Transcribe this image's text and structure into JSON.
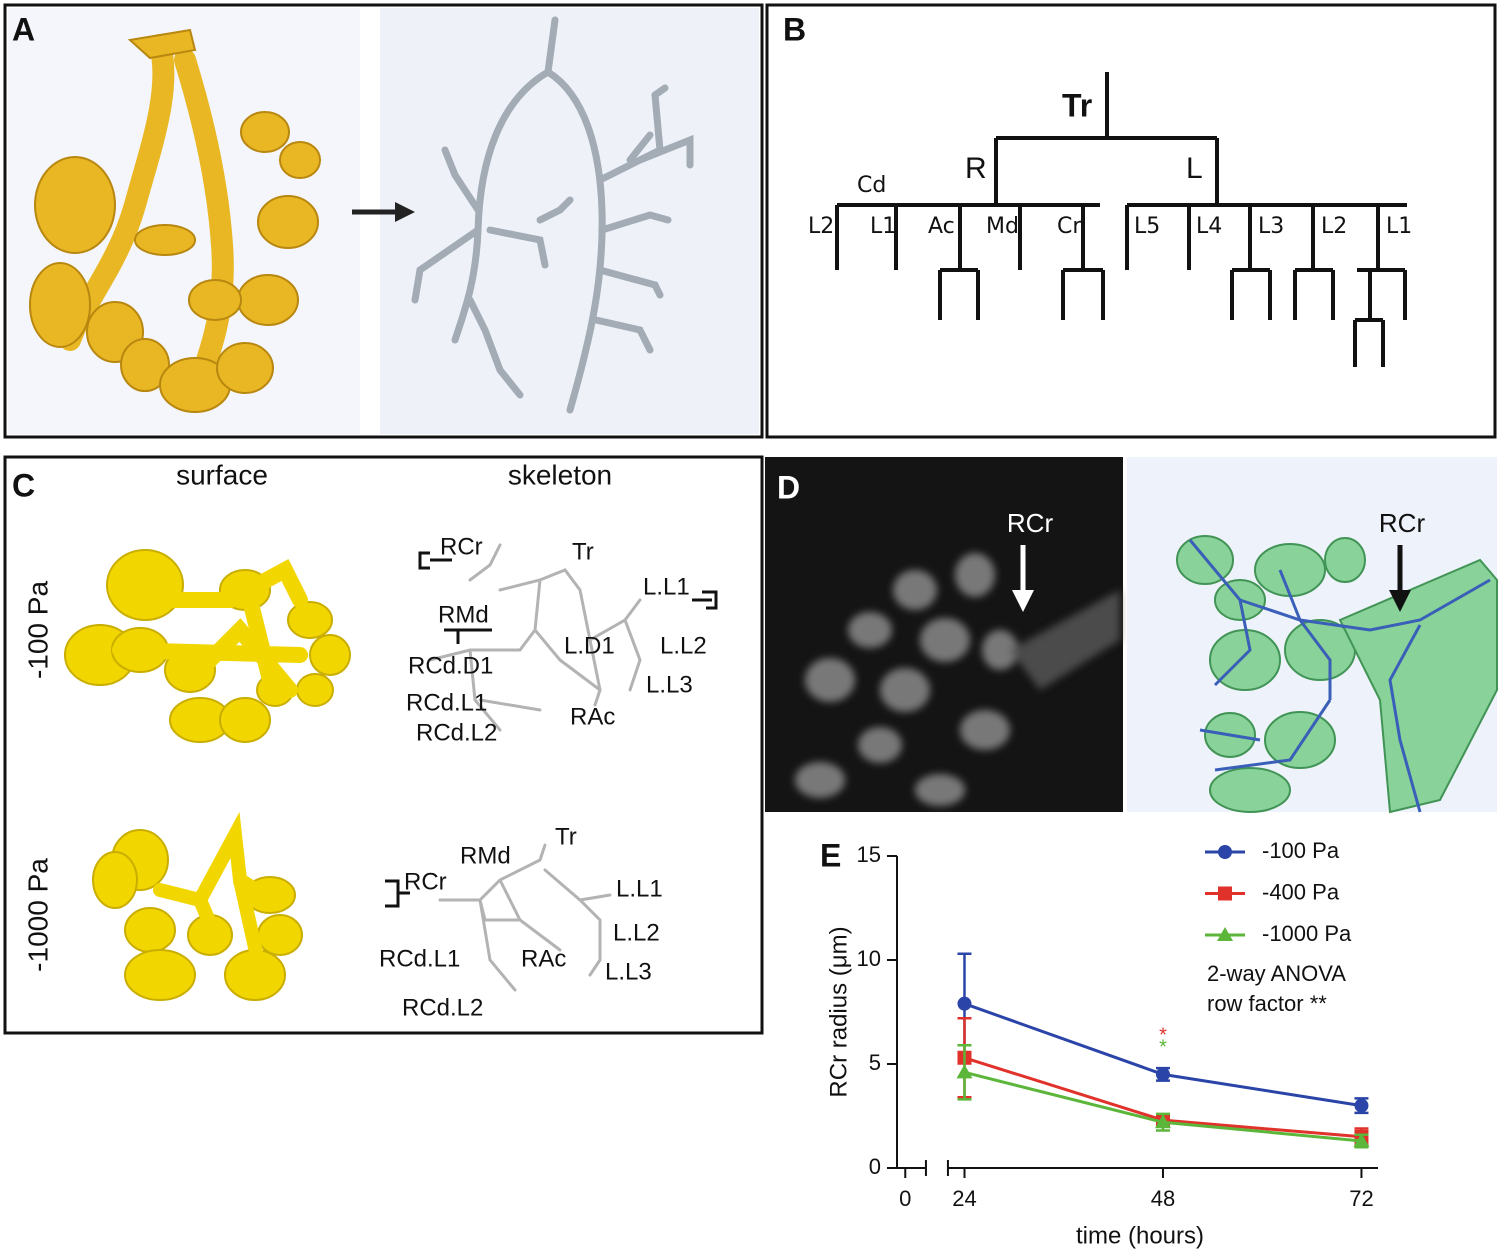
{
  "panel_a": {
    "label": "A"
  },
  "panel_b": {
    "label": "B",
    "nodes": [
      "Tr",
      "R",
      "L",
      "Cd",
      "L2",
      "L1",
      "Ac",
      "Md",
      "Cr",
      "L5",
      "L4",
      "L3",
      "L2",
      "L1"
    ]
  },
  "panel_c": {
    "label": "C",
    "columns": [
      "surface",
      "skeleton"
    ],
    "rows": [
      {
        "pressure": "-100 Pa",
        "skeleton_labels": [
          "RCr",
          "Tr",
          "L.L1",
          "RMd",
          "L.D1",
          "L.L2",
          "RCd.D1",
          "L.L3",
          "RCd.L1",
          "RAc",
          "RCd.L2"
        ]
      },
      {
        "pressure": "-1000 Pa",
        "skeleton_labels": [
          "RMd",
          "Tr",
          "RCr",
          "L.L1",
          "L.L2",
          "RCd.L1",
          "RAc",
          "L.L3",
          "RCd.L2"
        ]
      }
    ]
  },
  "panel_d": {
    "label": "D",
    "left_arrow_label": "RCr",
    "right_arrow_label": "RCr"
  },
  "chart_data": {
    "type": "line",
    "label": "E",
    "x": [
      24,
      48,
      72
    ],
    "series": [
      {
        "name": "-100 Pa",
        "color": "#2b44a8",
        "marker": "circle",
        "values": [
          7.9,
          4.5,
          3.0
        ],
        "errors": [
          2.4,
          0.3,
          0.35
        ]
      },
      {
        "name": "-400 Pa",
        "color": "#e0312b",
        "marker": "square",
        "values": [
          5.3,
          2.3,
          1.5
        ],
        "errors": [
          1.9,
          0.2,
          0.4
        ]
      },
      {
        "name": "-1000 Pa",
        "color": "#5cb63a",
        "marker": "triangle",
        "values": [
          4.6,
          2.2,
          1.3
        ],
        "errors": [
          1.3,
          0.4,
          0.3
        ]
      }
    ],
    "xlim": [
      -1,
      74
    ],
    "x_axis_break": [
      2.5,
      22
    ],
    "xticks": [
      0,
      24,
      48,
      72
    ],
    "ylim": [
      0,
      15
    ],
    "yticks": [
      0,
      5,
      10,
      15
    ],
    "xlabel": "time (hours)",
    "ylabel": "RCr radius (μm)",
    "legend": "upper right",
    "annotations": [
      "2-way ANOVA",
      "row factor **"
    ],
    "significance": [
      {
        "text": "*",
        "x": 48,
        "color": "#e0312b"
      },
      {
        "text": "*",
        "x": 48,
        "color": "#5cb63a"
      }
    ]
  }
}
